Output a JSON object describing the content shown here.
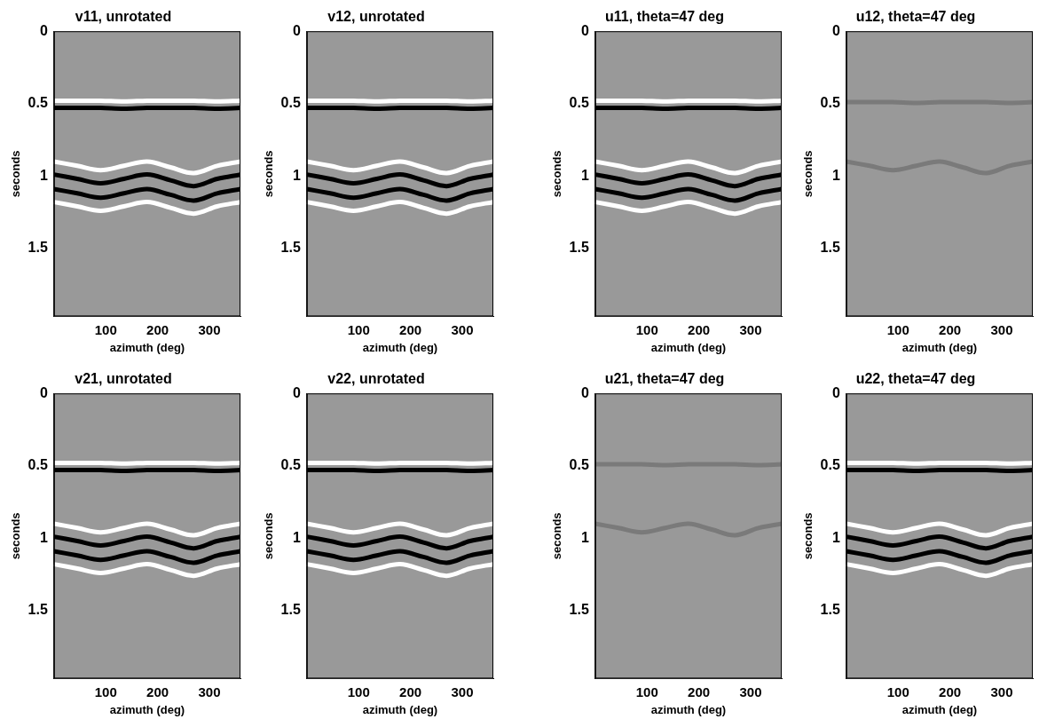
{
  "chart_data": [
    {
      "type": "line",
      "title": "v11, unrotated",
      "x_label": "azimuth (deg)",
      "y_label": "seconds",
      "x": [
        0,
        45,
        90,
        135,
        180,
        225,
        270,
        315,
        360
      ],
      "xlim": [
        0,
        360
      ],
      "xticks": [
        100,
        200,
        300
      ],
      "ylim": [
        0,
        1.97
      ],
      "yticks": [
        0,
        0.5,
        1,
        1.5
      ],
      "grid": false,
      "line_style": "solid",
      "marker": "none",
      "series": [
        {
          "color": "#ffffff",
          "values": [
            0.48,
            0.48,
            0.48,
            0.485,
            0.48,
            0.48,
            0.48,
            0.485,
            0.48
          ]
        },
        {
          "color": "#000000",
          "values": [
            0.53,
            0.53,
            0.53,
            0.535,
            0.53,
            0.53,
            0.53,
            0.535,
            0.53
          ]
        },
        {
          "color": "#ffffff",
          "values": [
            0.9,
            0.93,
            0.96,
            0.93,
            0.9,
            0.94,
            0.98,
            0.93,
            0.9
          ]
        },
        {
          "color": "#000000",
          "values": [
            0.99,
            1.02,
            1.05,
            1.02,
            0.99,
            1.03,
            1.07,
            1.02,
            0.99
          ]
        },
        {
          "color": "#000000",
          "values": [
            1.09,
            1.12,
            1.15,
            1.12,
            1.09,
            1.13,
            1.17,
            1.12,
            1.09
          ]
        },
        {
          "color": "#ffffff",
          "values": [
            1.18,
            1.21,
            1.24,
            1.21,
            1.18,
            1.22,
            1.26,
            1.21,
            1.18
          ]
        }
      ]
    },
    {
      "type": "line",
      "title": "v12, unrotated",
      "x_label": "azimuth (deg)",
      "y_label": "seconds",
      "x": [
        0,
        45,
        90,
        135,
        180,
        225,
        270,
        315,
        360
      ],
      "xlim": [
        0,
        360
      ],
      "xticks": [
        100,
        200,
        300
      ],
      "ylim": [
        0,
        1.97
      ],
      "yticks": [
        0,
        0.5,
        1,
        1.5
      ],
      "grid": false,
      "line_style": "solid",
      "marker": "none",
      "series": [
        {
          "color": "#ffffff",
          "values": [
            0.48,
            0.48,
            0.48,
            0.485,
            0.48,
            0.48,
            0.48,
            0.485,
            0.48
          ]
        },
        {
          "color": "#000000",
          "values": [
            0.53,
            0.53,
            0.53,
            0.535,
            0.53,
            0.53,
            0.53,
            0.535,
            0.53
          ]
        },
        {
          "color": "#ffffff",
          "values": [
            0.9,
            0.93,
            0.96,
            0.93,
            0.9,
            0.94,
            0.98,
            0.93,
            0.9
          ]
        },
        {
          "color": "#000000",
          "values": [
            0.99,
            1.02,
            1.05,
            1.02,
            0.99,
            1.03,
            1.07,
            1.02,
            0.99
          ]
        },
        {
          "color": "#000000",
          "values": [
            1.09,
            1.12,
            1.15,
            1.12,
            1.09,
            1.13,
            1.17,
            1.12,
            1.09
          ]
        },
        {
          "color": "#ffffff",
          "values": [
            1.18,
            1.21,
            1.24,
            1.21,
            1.18,
            1.22,
            1.26,
            1.21,
            1.18
          ]
        }
      ]
    },
    {
      "type": "line",
      "title": "u11, theta=47 deg",
      "x_label": "azimuth (deg)",
      "y_label": "seconds",
      "x": [
        0,
        45,
        90,
        135,
        180,
        225,
        270,
        315,
        360
      ],
      "xlim": [
        0,
        360
      ],
      "xticks": [
        100,
        200,
        300
      ],
      "ylim": [
        0,
        1.97
      ],
      "yticks": [
        0,
        0.5,
        1,
        1.5
      ],
      "grid": false,
      "line_style": "solid",
      "marker": "none",
      "series": [
        {
          "color": "#ffffff",
          "values": [
            0.48,
            0.48,
            0.48,
            0.485,
            0.48,
            0.48,
            0.48,
            0.485,
            0.48
          ]
        },
        {
          "color": "#000000",
          "values": [
            0.53,
            0.53,
            0.53,
            0.535,
            0.53,
            0.53,
            0.53,
            0.535,
            0.53
          ]
        },
        {
          "color": "#ffffff",
          "values": [
            0.9,
            0.93,
            0.96,
            0.93,
            0.9,
            0.94,
            0.98,
            0.93,
            0.9
          ]
        },
        {
          "color": "#000000",
          "values": [
            0.99,
            1.02,
            1.05,
            1.02,
            0.99,
            1.03,
            1.07,
            1.02,
            0.99
          ]
        },
        {
          "color": "#000000",
          "values": [
            1.09,
            1.12,
            1.15,
            1.12,
            1.09,
            1.13,
            1.17,
            1.12,
            1.09
          ]
        },
        {
          "color": "#ffffff",
          "values": [
            1.18,
            1.21,
            1.24,
            1.21,
            1.18,
            1.22,
            1.26,
            1.21,
            1.18
          ]
        }
      ]
    },
    {
      "type": "line",
      "title": "u12, theta=47 deg",
      "x_label": "azimuth (deg)",
      "y_label": "seconds",
      "x": [
        0,
        45,
        90,
        135,
        180,
        225,
        270,
        315,
        360
      ],
      "xlim": [
        0,
        360
      ],
      "xticks": [
        100,
        200,
        300
      ],
      "ylim": [
        0,
        1.97
      ],
      "yticks": [
        0,
        0.5,
        1,
        1.5
      ],
      "grid": false,
      "line_style": "solid",
      "marker": "none",
      "series": [
        {
          "color": "#7a7a7a",
          "values": [
            0.49,
            0.49,
            0.49,
            0.495,
            0.49,
            0.49,
            0.49,
            0.495,
            0.49
          ]
        },
        {
          "color": "#7a7a7a",
          "values": [
            0.9,
            0.93,
            0.96,
            0.93,
            0.9,
            0.94,
            0.98,
            0.93,
            0.9
          ]
        }
      ]
    },
    {
      "type": "line",
      "title": "v21, unrotated",
      "x_label": "azimuth (deg)",
      "y_label": "seconds",
      "x": [
        0,
        45,
        90,
        135,
        180,
        225,
        270,
        315,
        360
      ],
      "xlim": [
        0,
        360
      ],
      "xticks": [
        100,
        200,
        300
      ],
      "ylim": [
        0,
        1.97
      ],
      "yticks": [
        0,
        0.5,
        1,
        1.5
      ],
      "grid": false,
      "line_style": "solid",
      "marker": "none",
      "series": [
        {
          "color": "#ffffff",
          "values": [
            0.48,
            0.48,
            0.48,
            0.485,
            0.48,
            0.48,
            0.48,
            0.485,
            0.48
          ]
        },
        {
          "color": "#000000",
          "values": [
            0.53,
            0.53,
            0.53,
            0.535,
            0.53,
            0.53,
            0.53,
            0.535,
            0.53
          ]
        },
        {
          "color": "#ffffff",
          "values": [
            0.9,
            0.93,
            0.96,
            0.93,
            0.9,
            0.94,
            0.98,
            0.93,
            0.9
          ]
        },
        {
          "color": "#000000",
          "values": [
            0.99,
            1.02,
            1.05,
            1.02,
            0.99,
            1.03,
            1.07,
            1.02,
            0.99
          ]
        },
        {
          "color": "#000000",
          "values": [
            1.09,
            1.12,
            1.15,
            1.12,
            1.09,
            1.13,
            1.17,
            1.12,
            1.09
          ]
        },
        {
          "color": "#ffffff",
          "values": [
            1.18,
            1.21,
            1.24,
            1.21,
            1.18,
            1.22,
            1.26,
            1.21,
            1.18
          ]
        }
      ]
    },
    {
      "type": "line",
      "title": "v22, unrotated",
      "x_label": "azimuth (deg)",
      "y_label": "seconds",
      "x": [
        0,
        45,
        90,
        135,
        180,
        225,
        270,
        315,
        360
      ],
      "xlim": [
        0,
        360
      ],
      "xticks": [
        100,
        200,
        300
      ],
      "ylim": [
        0,
        1.97
      ],
      "yticks": [
        0,
        0.5,
        1,
        1.5
      ],
      "grid": false,
      "line_style": "solid",
      "marker": "none",
      "series": [
        {
          "color": "#ffffff",
          "values": [
            0.48,
            0.48,
            0.48,
            0.485,
            0.48,
            0.48,
            0.48,
            0.485,
            0.48
          ]
        },
        {
          "color": "#000000",
          "values": [
            0.53,
            0.53,
            0.53,
            0.535,
            0.53,
            0.53,
            0.53,
            0.535,
            0.53
          ]
        },
        {
          "color": "#ffffff",
          "values": [
            0.9,
            0.93,
            0.96,
            0.93,
            0.9,
            0.94,
            0.98,
            0.93,
            0.9
          ]
        },
        {
          "color": "#000000",
          "values": [
            0.99,
            1.02,
            1.05,
            1.02,
            0.99,
            1.03,
            1.07,
            1.02,
            0.99
          ]
        },
        {
          "color": "#000000",
          "values": [
            1.09,
            1.12,
            1.15,
            1.12,
            1.09,
            1.13,
            1.17,
            1.12,
            1.09
          ]
        },
        {
          "color": "#ffffff",
          "values": [
            1.18,
            1.21,
            1.24,
            1.21,
            1.18,
            1.22,
            1.26,
            1.21,
            1.18
          ]
        }
      ]
    },
    {
      "type": "line",
      "title": "u21, theta=47 deg",
      "x_label": "azimuth (deg)",
      "y_label": "seconds",
      "x": [
        0,
        45,
        90,
        135,
        180,
        225,
        270,
        315,
        360
      ],
      "xlim": [
        0,
        360
      ],
      "xticks": [
        100,
        200,
        300
      ],
      "ylim": [
        0,
        1.97
      ],
      "yticks": [
        0,
        0.5,
        1,
        1.5
      ],
      "grid": false,
      "line_style": "solid",
      "marker": "none",
      "series": [
        {
          "color": "#7a7a7a",
          "values": [
            0.49,
            0.49,
            0.49,
            0.495,
            0.49,
            0.49,
            0.49,
            0.495,
            0.49
          ]
        },
        {
          "color": "#7a7a7a",
          "values": [
            0.9,
            0.93,
            0.96,
            0.93,
            0.9,
            0.94,
            0.98,
            0.93,
            0.9
          ]
        }
      ]
    },
    {
      "type": "line",
      "title": "u22, theta=47 deg",
      "x_label": "azimuth (deg)",
      "y_label": "seconds",
      "x": [
        0,
        45,
        90,
        135,
        180,
        225,
        270,
        315,
        360
      ],
      "xlim": [
        0,
        360
      ],
      "xticks": [
        100,
        200,
        300
      ],
      "ylim": [
        0,
        1.97
      ],
      "yticks": [
        0,
        0.5,
        1,
        1.5
      ],
      "grid": false,
      "line_style": "solid",
      "marker": "none",
      "series": [
        {
          "color": "#ffffff",
          "values": [
            0.48,
            0.48,
            0.48,
            0.485,
            0.48,
            0.48,
            0.48,
            0.485,
            0.48
          ]
        },
        {
          "color": "#000000",
          "values": [
            0.53,
            0.53,
            0.53,
            0.535,
            0.53,
            0.53,
            0.53,
            0.535,
            0.53
          ]
        },
        {
          "color": "#ffffff",
          "values": [
            0.9,
            0.93,
            0.96,
            0.93,
            0.9,
            0.94,
            0.98,
            0.93,
            0.9
          ]
        },
        {
          "color": "#000000",
          "values": [
            0.99,
            1.02,
            1.05,
            1.02,
            0.99,
            1.03,
            1.07,
            1.02,
            0.99
          ]
        },
        {
          "color": "#000000",
          "values": [
            1.09,
            1.12,
            1.15,
            1.12,
            1.09,
            1.13,
            1.17,
            1.12,
            1.09
          ]
        },
        {
          "color": "#ffffff",
          "values": [
            1.18,
            1.21,
            1.24,
            1.21,
            1.18,
            1.22,
            1.26,
            1.21,
            1.18
          ]
        }
      ]
    }
  ]
}
